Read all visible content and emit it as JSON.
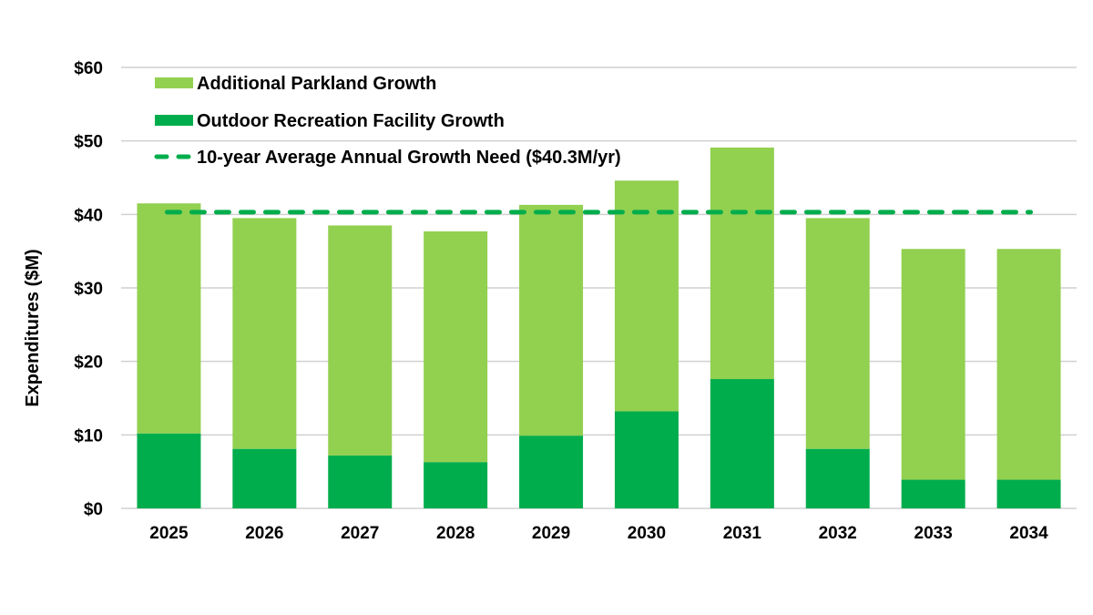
{
  "chart_data": {
    "type": "bar",
    "stacked": true,
    "title": "",
    "xlabel": "",
    "ylabel": "Expenditures ($M)",
    "ylim": [
      0,
      60
    ],
    "y_ticks": [
      0,
      10,
      20,
      30,
      40,
      50,
      60
    ],
    "y_tick_labels": [
      "$0",
      "$10",
      "$20",
      "$30",
      "$40",
      "$50",
      "$60"
    ],
    "grid": true,
    "legend_position": "top-left",
    "categories": [
      "2025",
      "2026",
      "2027",
      "2028",
      "2029",
      "2030",
      "2031",
      "2032",
      "2033",
      "2034"
    ],
    "series": [
      {
        "name": "Outdoor Recreation Facility Growth",
        "color": "#00ad4c",
        "values": [
          10.2,
          8.1,
          7.2,
          6.3,
          9.9,
          13.2,
          17.6,
          8.1,
          3.9,
          3.9
        ]
      },
      {
        "name": "Additional Parkland Growth",
        "color": "#92d050",
        "values": [
          31.3,
          31.4,
          31.3,
          31.4,
          31.4,
          31.4,
          31.5,
          31.4,
          31.4,
          31.4
        ]
      }
    ],
    "reference_line": {
      "name": "10-year Average Annual Growth Need ($40.3M/yr)",
      "value": 40.3,
      "color": "#00ad4c",
      "style": "dashed"
    },
    "legend": [
      {
        "label": "Additional Parkland Growth",
        "kind": "bar",
        "color": "#92d050"
      },
      {
        "label": "Outdoor Recreation Facility Growth",
        "kind": "bar",
        "color": "#00ad4c"
      },
      {
        "label": "10-year Average Annual Growth Need ($40.3M/yr)",
        "kind": "dashed-line",
        "color": "#00ad4c"
      }
    ]
  }
}
